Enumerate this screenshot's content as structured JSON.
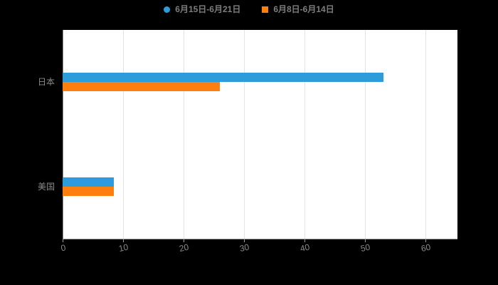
{
  "colors": {
    "background": "#000000",
    "plot_background": "#ffffff",
    "grid": "#e4e4e4",
    "axis": "#9a9a9a",
    "text": "#8a8a8a"
  },
  "chart_data": {
    "type": "bar",
    "orientation": "horizontal",
    "title": "",
    "xlabel": "",
    "ylabel": "",
    "categories": [
      "日本",
      "美国"
    ],
    "series": [
      {
        "name": "6月15日-6月21日",
        "marker": "circle",
        "color": "#2D9CDB",
        "values": [
          53,
          8.5
        ]
      },
      {
        "name": "6月8日-6月14日",
        "marker": "square",
        "color": "#FF7F0E",
        "values": [
          26,
          8.5
        ]
      }
    ],
    "xlim": [
      0,
      60
    ],
    "xticks": [
      0,
      10,
      20,
      30,
      40,
      50,
      60
    ],
    "grid": true,
    "legend_position": "top"
  }
}
